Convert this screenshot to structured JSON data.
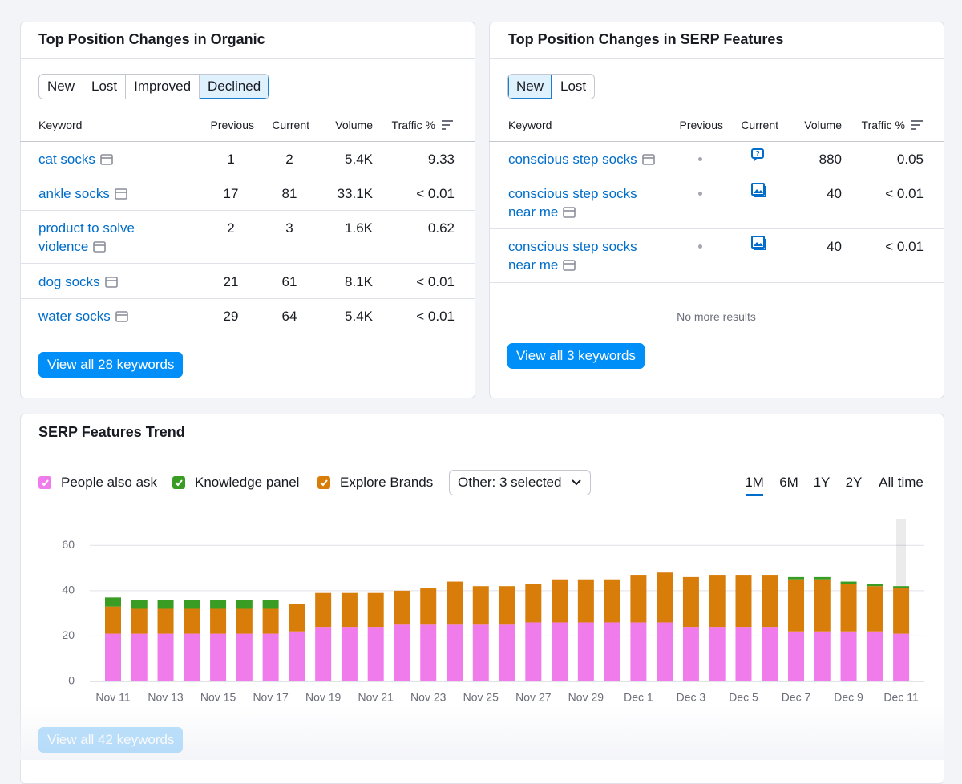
{
  "organic": {
    "title": "Top Position Changes in Organic",
    "tabs": [
      {
        "label": "New"
      },
      {
        "label": "Lost"
      },
      {
        "label": "Improved"
      },
      {
        "label": "Declined",
        "selected": true
      }
    ],
    "columns": [
      "Keyword",
      "Previous",
      "Current",
      "Volume",
      "Traffic %"
    ],
    "rows": [
      {
        "keyword": "cat socks",
        "previous": "1",
        "current": "2",
        "volume": "5.4K",
        "traffic": "9.33"
      },
      {
        "keyword": "ankle socks",
        "previous": "17",
        "current": "81",
        "volume": "33.1K",
        "traffic": "< 0.01"
      },
      {
        "keyword": "product to solve violence",
        "previous": "2",
        "current": "3",
        "volume": "1.6K",
        "traffic": "0.62"
      },
      {
        "keyword": "dog socks",
        "previous": "21",
        "current": "61",
        "volume": "8.1K",
        "traffic": "< 0.01"
      },
      {
        "keyword": "water socks",
        "previous": "29",
        "current": "64",
        "volume": "5.4K",
        "traffic": "< 0.01"
      }
    ],
    "button": "View all 28 keywords"
  },
  "serp": {
    "title": "Top Position Changes in SERP Features",
    "tabs": [
      {
        "label": "New",
        "selected": true
      },
      {
        "label": "Lost"
      }
    ],
    "columns": [
      "Keyword",
      "Previous",
      "Current",
      "Volume",
      "Traffic %"
    ],
    "rows": [
      {
        "keyword": "conscious step socks",
        "volume": "880",
        "traffic": "0.05"
      },
      {
        "keyword": "conscious step socks near me",
        "volume": "40",
        "traffic": "< 0.01"
      },
      {
        "keyword": "conscious step socks near me",
        "volume": "40",
        "traffic": "< 0.01"
      }
    ],
    "empty_note": "No more results",
    "button": "View all 3 keywords"
  },
  "chart_data": {
    "type": "bar",
    "stacked": true,
    "title": "SERP Features Trend",
    "dropdown": "Other: 3 selected",
    "ranges": [
      {
        "label": "1M",
        "selected": true
      },
      {
        "label": "6M"
      },
      {
        "label": "1Y"
      },
      {
        "label": "2Y"
      },
      {
        "label": "All time"
      }
    ],
    "categories": [
      "Nov 11",
      null,
      "Nov 13",
      null,
      "Nov 15",
      null,
      "Nov 17",
      null,
      "Nov 19",
      null,
      "Nov 21",
      null,
      "Nov 23",
      null,
      "Nov 25",
      null,
      "Nov 27",
      null,
      "Nov 29",
      null,
      "Dec 1",
      null,
      "Dec 3",
      null,
      "Dec 5",
      null,
      "Dec 7",
      null,
      "Dec 9",
      null,
      "Dec 11"
    ],
    "series": [
      {
        "name": "People also ask",
        "color": "#f07ceb",
        "values": [
          21,
          21,
          21,
          21,
          21,
          21,
          21,
          22,
          24,
          24,
          24,
          25,
          25,
          25,
          25,
          25,
          26,
          26,
          26,
          26,
          26,
          26,
          24,
          24,
          24,
          24,
          22,
          22,
          22,
          22,
          21
        ]
      },
      {
        "name": "Knowledge panel",
        "color": "#3a9d23",
        "values": [
          4,
          4,
          4,
          4,
          4,
          4,
          4,
          0,
          0,
          0,
          0,
          0,
          0,
          0,
          0,
          0,
          0,
          0,
          0,
          0,
          0,
          0,
          0,
          0,
          0,
          0,
          1,
          1,
          1,
          1,
          1
        ],
        "stack_order": 2
      },
      {
        "name": "Explore Brands",
        "color": "#d97d0a",
        "values": [
          12,
          11,
          11,
          11,
          11,
          11,
          11,
          12,
          15,
          15,
          15,
          15,
          16,
          19,
          17,
          17,
          17,
          19,
          19,
          19,
          21,
          22,
          22,
          23,
          23,
          23,
          23,
          23,
          21,
          20,
          20
        ],
        "stack_order": 1
      }
    ],
    "ylim": [
      0,
      70
    ],
    "yticks": [
      0,
      20,
      40,
      60
    ],
    "grid": true,
    "button": "View all 42 keywords"
  }
}
